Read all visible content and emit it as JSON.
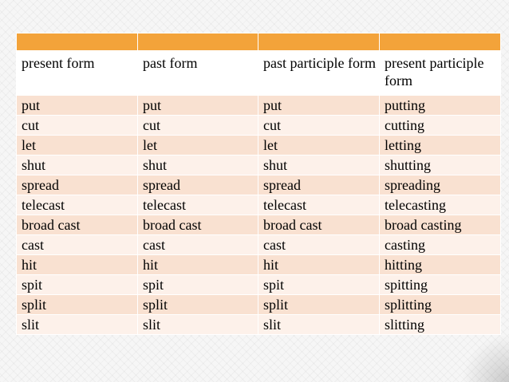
{
  "table": {
    "header_band": [
      "",
      "",
      "",
      ""
    ],
    "columns": [
      "present form",
      "past form",
      "past participle form",
      "present participle form"
    ],
    "rows": [
      [
        "put",
        "put",
        "put",
        "putting"
      ],
      [
        "cut",
        "cut",
        "cut",
        "cutting"
      ],
      [
        "let",
        "let",
        "let",
        "letting"
      ],
      [
        "shut",
        "shut",
        "shut",
        "shutting"
      ],
      [
        "spread",
        "spread",
        "spread",
        "spreading"
      ],
      [
        "telecast",
        "telecast",
        "telecast",
        "telecasting"
      ],
      [
        "broad cast",
        "broad cast",
        "broad cast",
        "broad casting"
      ],
      [
        "cast",
        "cast",
        "cast",
        "casting"
      ],
      [
        "hit",
        "hit",
        "hit",
        "hitting"
      ],
      [
        "spit",
        "spit",
        "spit",
        "spitting"
      ],
      [
        "split",
        "split",
        "split",
        "splitting"
      ],
      [
        "slit",
        "slit",
        "slit",
        "slitting"
      ]
    ]
  },
  "colors": {
    "header_band": "#f3a33a",
    "row_odd": "#f9e1d1",
    "row_even": "#fdf1ea"
  }
}
